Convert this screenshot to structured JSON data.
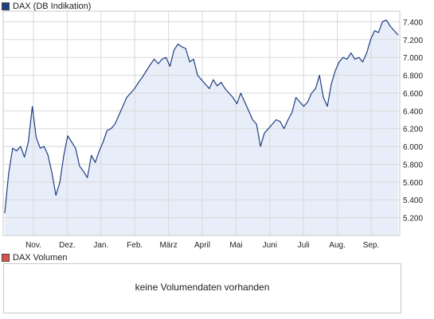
{
  "legend": {
    "price_label": "DAX (DB Indikation)",
    "price_color": "#1f3f80",
    "volume_label": "DAX Volumen",
    "volume_color": "#d9534f"
  },
  "volume_panel": {
    "message": "keine Volumendaten vorhanden"
  },
  "colors": {
    "line": "#1f3f80",
    "fill": "#e8eef9",
    "grid": "#d8d8d8",
    "border": "#c8c8c8"
  },
  "chart_data": {
    "type": "area",
    "title": "DAX (DB Indikation)",
    "x_tick_labels": [
      "Nov.",
      "Dez.",
      "Jan.",
      "Feb.",
      "März",
      "April",
      "Mai",
      "Juni",
      "Juli",
      "Aug.",
      "Sep."
    ],
    "y_tick_labels": [
      "5.200",
      "5.400",
      "5.600",
      "5.800",
      "6.000",
      "6.200",
      "6.400",
      "6.600",
      "6.800",
      "7.000",
      "7.200",
      "7.400"
    ],
    "y_ticks": [
      5200,
      5400,
      5600,
      5800,
      6000,
      6200,
      6400,
      6600,
      6800,
      7000,
      7200,
      7400
    ],
    "ylim": [
      5000,
      7520
    ],
    "grid": true,
    "x_index_max": 100,
    "series": [
      {
        "name": "DAX (DB Indikation)",
        "points": [
          [
            0,
            5250
          ],
          [
            1,
            5700
          ],
          [
            2,
            5980
          ],
          [
            3,
            5950
          ],
          [
            4,
            6000
          ],
          [
            5,
            5880
          ],
          [
            6,
            6050
          ],
          [
            7,
            6450
          ],
          [
            8,
            6100
          ],
          [
            9,
            5980
          ],
          [
            10,
            6000
          ],
          [
            11,
            5900
          ],
          [
            12,
            5700
          ],
          [
            13,
            5450
          ],
          [
            14,
            5600
          ],
          [
            15,
            5900
          ],
          [
            16,
            6120
          ],
          [
            17,
            6050
          ],
          [
            18,
            5980
          ],
          [
            19,
            5780
          ],
          [
            20,
            5720
          ],
          [
            21,
            5650
          ],
          [
            22,
            5900
          ],
          [
            23,
            5820
          ],
          [
            24,
            5950
          ],
          [
            25,
            6050
          ],
          [
            26,
            6180
          ],
          [
            27,
            6200
          ],
          [
            28,
            6250
          ],
          [
            29,
            6350
          ],
          [
            30,
            6450
          ],
          [
            31,
            6550
          ],
          [
            32,
            6600
          ],
          [
            33,
            6650
          ],
          [
            34,
            6720
          ],
          [
            35,
            6780
          ],
          [
            36,
            6850
          ],
          [
            37,
            6920
          ],
          [
            38,
            6980
          ],
          [
            39,
            6930
          ],
          [
            40,
            6980
          ],
          [
            41,
            7000
          ],
          [
            42,
            6900
          ],
          [
            43,
            7080
          ],
          [
            44,
            7150
          ],
          [
            45,
            7120
          ],
          [
            46,
            7100
          ],
          [
            47,
            6950
          ],
          [
            48,
            6980
          ],
          [
            49,
            6800
          ],
          [
            50,
            6750
          ],
          [
            51,
            6700
          ],
          [
            52,
            6650
          ],
          [
            53,
            6750
          ],
          [
            54,
            6680
          ],
          [
            55,
            6720
          ],
          [
            56,
            6650
          ],
          [
            57,
            6600
          ],
          [
            58,
            6550
          ],
          [
            59,
            6480
          ],
          [
            60,
            6600
          ],
          [
            61,
            6500
          ],
          [
            62,
            6400
          ],
          [
            63,
            6300
          ],
          [
            64,
            6250
          ],
          [
            65,
            6000
          ],
          [
            66,
            6150
          ],
          [
            67,
            6200
          ],
          [
            68,
            6250
          ],
          [
            69,
            6300
          ],
          [
            70,
            6280
          ],
          [
            71,
            6200
          ],
          [
            72,
            6300
          ],
          [
            73,
            6380
          ],
          [
            74,
            6550
          ],
          [
            75,
            6500
          ],
          [
            76,
            6450
          ],
          [
            77,
            6500
          ],
          [
            78,
            6600
          ],
          [
            79,
            6650
          ],
          [
            80,
            6800
          ],
          [
            81,
            6550
          ],
          [
            82,
            6450
          ],
          [
            83,
            6700
          ],
          [
            84,
            6850
          ],
          [
            85,
            6950
          ],
          [
            86,
            7000
          ],
          [
            87,
            6980
          ],
          [
            88,
            7050
          ],
          [
            89,
            6980
          ],
          [
            90,
            7000
          ],
          [
            91,
            6950
          ],
          [
            92,
            7050
          ],
          [
            93,
            7200
          ],
          [
            94,
            7300
          ],
          [
            95,
            7280
          ],
          [
            96,
            7400
          ],
          [
            97,
            7420
          ],
          [
            98,
            7350
          ],
          [
            99,
            7300
          ],
          [
            100,
            7250
          ]
        ]
      }
    ]
  }
}
